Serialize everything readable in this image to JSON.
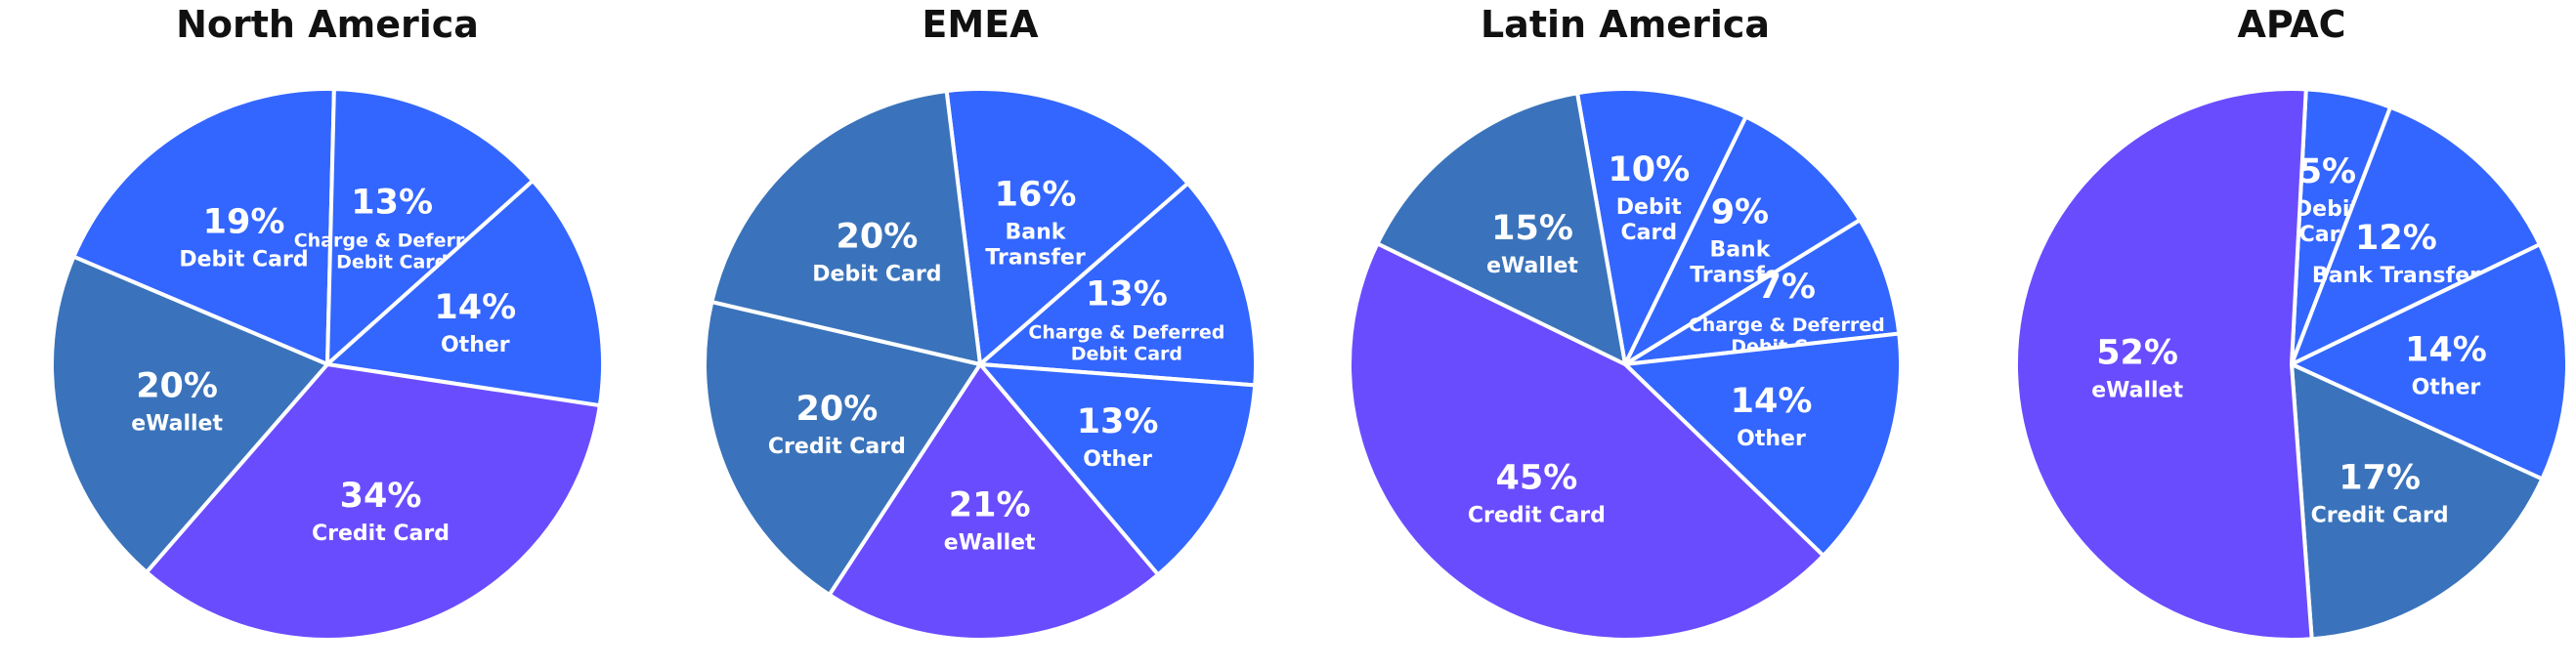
{
  "colors": {
    "credit_card": "#6a4cff",
    "ewallet_steel": "#3a73bb",
    "royal_blue": "#3366ff",
    "violet": "#6a4cff"
  },
  "chart_data": [
    {
      "type": "pie",
      "title": "North America",
      "slices": [
        {
          "label": "Debit Card",
          "value": 19,
          "display": "19%",
          "lines": [
            "Debit Card"
          ],
          "color": "#3366ff"
        },
        {
          "label": "Charge & Deferred Debit Card",
          "value": 13,
          "display": "13%",
          "lines": [
            "Charge & Deferred",
            "Debit Card"
          ],
          "color": "#3366ff"
        },
        {
          "label": "Other",
          "value": 14,
          "display": "14%",
          "lines": [
            "Other"
          ],
          "color": "#3366ff"
        },
        {
          "label": "Credit Card",
          "value": 34,
          "display": "34%",
          "lines": [
            "Credit Card"
          ],
          "color": "#6a4cff"
        },
        {
          "label": "eWallet",
          "value": 20,
          "display": "20%",
          "lines": [
            "eWallet"
          ],
          "color": "#3a73bb"
        }
      ]
    },
    {
      "type": "pie",
      "title": "EMEA",
      "slices": [
        {
          "label": "Bank Transfer",
          "value": 16,
          "display": "16%",
          "lines": [
            "Bank",
            "Transfer"
          ],
          "color": "#3366ff"
        },
        {
          "label": "Charge & Deferred Debit Card",
          "value": 13,
          "display": "13%",
          "lines": [
            "Charge & Deferred",
            "Debit Card"
          ],
          "color": "#3366ff"
        },
        {
          "label": "Other",
          "value": 13,
          "display": "13%",
          "lines": [
            "Other"
          ],
          "color": "#3366ff"
        },
        {
          "label": "eWallet",
          "value": 21,
          "display": "21%",
          "lines": [
            "eWallet"
          ],
          "color": "#6a4cff"
        },
        {
          "label": "Credit Card",
          "value": 20,
          "display": "20%",
          "lines": [
            "Credit Card"
          ],
          "color": "#3a73bb"
        },
        {
          "label": "Debit Card",
          "value": 20,
          "display": "20%",
          "lines": [
            "Debit Card"
          ],
          "color": "#3a73bb"
        }
      ]
    },
    {
      "type": "pie",
      "title": "Latin America",
      "slices": [
        {
          "label": "Debit Card",
          "value": 10,
          "display": "10%",
          "lines": [
            "Debit",
            "Card"
          ],
          "color": "#3366ff"
        },
        {
          "label": "Bank Transfer",
          "value": 9,
          "display": "9%",
          "lines": [
            "Bank",
            "Transfer"
          ],
          "color": "#3366ff"
        },
        {
          "label": "Charge & Deferred Debit Card",
          "value": 7,
          "display": "7%",
          "lines": [
            "Charge & Deferred",
            "Debit Card"
          ],
          "color": "#3366ff"
        },
        {
          "label": "Other",
          "value": 14,
          "display": "14%",
          "lines": [
            "Other"
          ],
          "color": "#3366ff"
        },
        {
          "label": "Credit Card",
          "value": 45,
          "display": "45%",
          "lines": [
            "Credit Card"
          ],
          "color": "#6a4cff"
        },
        {
          "label": "eWallet",
          "value": 15,
          "display": "15%",
          "lines": [
            "eWallet"
          ],
          "color": "#3a73bb"
        }
      ]
    },
    {
      "type": "pie",
      "title": "APAC",
      "slices": [
        {
          "label": "Debit Card",
          "value": 5,
          "display": "5%",
          "lines": [
            "Debit",
            "Card"
          ],
          "color": "#3366ff"
        },
        {
          "label": "Bank Transfer",
          "value": 12,
          "display": "12%",
          "lines": [
            "Bank Transfer"
          ],
          "color": "#3366ff"
        },
        {
          "label": "Other",
          "value": 14,
          "display": "14%",
          "lines": [
            "Other"
          ],
          "color": "#3366ff"
        },
        {
          "label": "Credit Card",
          "value": 17,
          "display": "17%",
          "lines": [
            "Credit Card"
          ],
          "color": "#3a73bb"
        },
        {
          "label": "eWallet",
          "value": 52,
          "display": "52%",
          "lines": [
            "eWallet"
          ],
          "color": "#6a4cff"
        }
      ]
    }
  ]
}
